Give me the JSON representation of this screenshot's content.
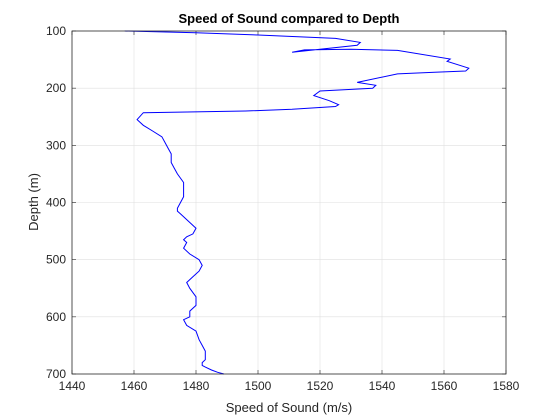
{
  "chart_data": {
    "type": "line",
    "title": "Speed of Sound compared to Depth",
    "xlabel": "Speed of Sound (m/s)",
    "ylabel": "Depth (m)",
    "xlim": [
      1440,
      1580
    ],
    "ylim": [
      100,
      700
    ],
    "y_reversed": true,
    "xticks": [
      "1440",
      "1460",
      "1480",
      "1500",
      "1520",
      "1540",
      "1560",
      "1580"
    ],
    "yticks": [
      "100",
      "200",
      "300",
      "400",
      "500",
      "600",
      "700"
    ],
    "grid": true,
    "line_color": "#0000ff",
    "series": [
      {
        "x": [
          1457,
          1480,
          1500,
          1525,
          1533,
          1532,
          1511,
          1515,
          1530,
          1545,
          1562,
          1561,
          1568,
          1567,
          1557,
          1545,
          1532,
          1538,
          1537,
          1520,
          1518,
          1523,
          1526,
          1525,
          1511,
          1496,
          1463,
          1461,
          1463,
          1466,
          1469,
          1470,
          1471,
          1472,
          1472,
          1473,
          1474,
          1476,
          1476,
          1476,
          1475,
          1474,
          1474,
          1475,
          1478,
          1480,
          1479,
          1477,
          1476,
          1477,
          1476,
          1478,
          1481,
          1482,
          1481,
          1479,
          1477,
          1478,
          1480,
          1480,
          1478,
          1478,
          1476,
          1477,
          1480,
          1481,
          1482,
          1483,
          1483,
          1483,
          1482,
          1482,
          1483,
          1485,
          1487,
          1489
        ],
        "y": [
          100,
          103,
          107,
          113,
          120,
          125,
          137,
          133,
          132,
          134,
          149,
          153,
          165,
          170,
          172,
          175,
          190,
          195,
          200,
          205,
          213,
          222,
          229,
          232,
          237,
          240,
          243,
          255,
          265,
          275,
          285,
          295,
          305,
          315,
          330,
          340,
          350,
          365,
          380,
          390,
          400,
          410,
          415,
          420,
          435,
          445,
          455,
          460,
          465,
          470,
          480,
          490,
          500,
          510,
          520,
          530,
          540,
          550,
          565,
          580,
          590,
          600,
          605,
          615,
          625,
          640,
          650,
          660,
          670,
          675,
          680,
          685,
          688,
          693,
          697,
          700
        ]
      }
    ]
  }
}
